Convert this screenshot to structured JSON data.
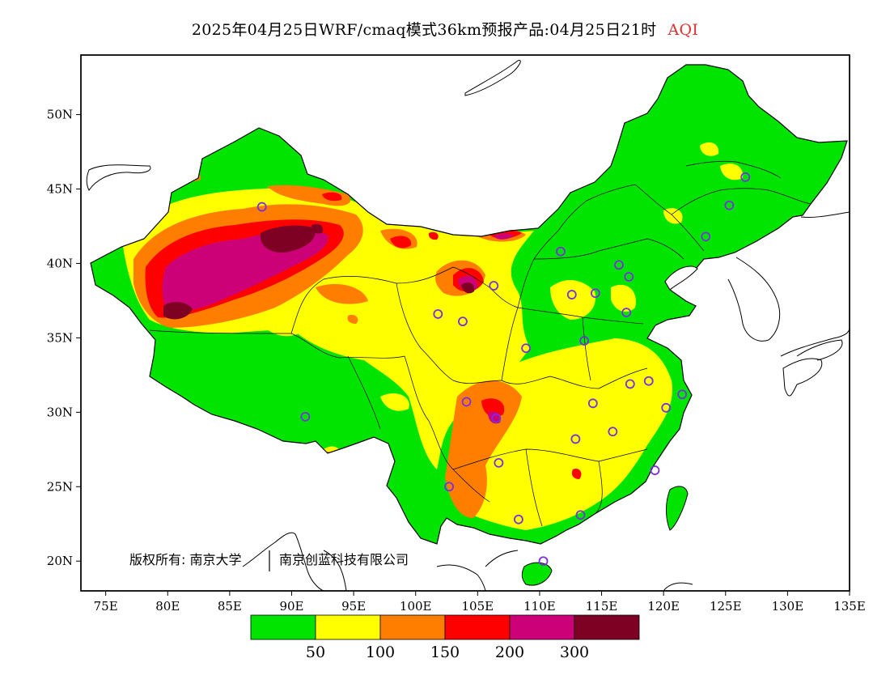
{
  "title": {
    "main": "2025年04月25日WRF/cmaq模式36km预报产品:04月25日21时",
    "variable": "AQI",
    "variable_color": "#e03030"
  },
  "axes": {
    "lon_ticks": [
      "75E",
      "80E",
      "85E",
      "90E",
      "95E",
      "100E",
      "105E",
      "110E",
      "115E",
      "120E",
      "125E",
      "130E",
      "135E"
    ],
    "lat_ticks": [
      "20N",
      "25N",
      "30N",
      "35N",
      "40N",
      "45N",
      "50N"
    ],
    "lon_range": [
      73,
      135
    ],
    "lat_range": [
      18,
      54
    ]
  },
  "copyright": {
    "owner1": "版权所有: 南京大学",
    "owner2": "南京创蓝科技有限公司"
  },
  "colorbar": {
    "colors": [
      "#00e400",
      "#ffff00",
      "#ff7e00",
      "#ff0000",
      "#cc0077",
      "#7e0023"
    ],
    "labels": [
      "50",
      "100",
      "150",
      "200",
      "300"
    ]
  },
  "aqi_levels": [
    {
      "min": 0,
      "max": 50,
      "color": "#00e400"
    },
    {
      "min": 50,
      "max": 100,
      "color": "#ffff00"
    },
    {
      "min": 100,
      "max": 150,
      "color": "#ff7e00"
    },
    {
      "min": 150,
      "max": 200,
      "color": "#ff0000"
    },
    {
      "min": 200,
      "max": 300,
      "color": "#cc0077"
    },
    {
      "min": 300,
      "max": 500,
      "color": "#7e0023"
    }
  ],
  "station_marker_color": "#7b2fe0",
  "stations": [
    {
      "lon": 87.6,
      "lat": 43.8
    },
    {
      "lon": 91.1,
      "lat": 29.7
    },
    {
      "lon": 101.8,
      "lat": 36.6
    },
    {
      "lon": 103.8,
      "lat": 36.1
    },
    {
      "lon": 106.3,
      "lat": 38.5
    },
    {
      "lon": 111.7,
      "lat": 40.8
    },
    {
      "lon": 112.6,
      "lat": 37.9
    },
    {
      "lon": 114.5,
      "lat": 38.0
    },
    {
      "lon": 116.4,
      "lat": 39.9
    },
    {
      "lon": 117.2,
      "lat": 39.1
    },
    {
      "lon": 117.0,
      "lat": 36.7
    },
    {
      "lon": 113.6,
      "lat": 34.8
    },
    {
      "lon": 108.9,
      "lat": 34.3
    },
    {
      "lon": 104.1,
      "lat": 30.7
    },
    {
      "lon": 106.5,
      "lat": 29.6
    },
    {
      "lon": 106.7,
      "lat": 26.6
    },
    {
      "lon": 102.7,
      "lat": 25.0
    },
    {
      "lon": 108.3,
      "lat": 22.8
    },
    {
      "lon": 113.3,
      "lat": 23.1
    },
    {
      "lon": 110.3,
      "lat": 20.0
    },
    {
      "lon": 112.9,
      "lat": 28.2
    },
    {
      "lon": 114.3,
      "lat": 30.6
    },
    {
      "lon": 115.9,
      "lat": 28.7
    },
    {
      "lon": 117.3,
      "lat": 31.9
    },
    {
      "lon": 118.8,
      "lat": 32.1
    },
    {
      "lon": 120.2,
      "lat": 30.3
    },
    {
      "lon": 121.5,
      "lat": 31.2
    },
    {
      "lon": 119.3,
      "lat": 26.1
    },
    {
      "lon": 123.4,
      "lat": 41.8
    },
    {
      "lon": 125.3,
      "lat": 43.9
    },
    {
      "lon": 126.6,
      "lat": 45.8
    }
  ]
}
